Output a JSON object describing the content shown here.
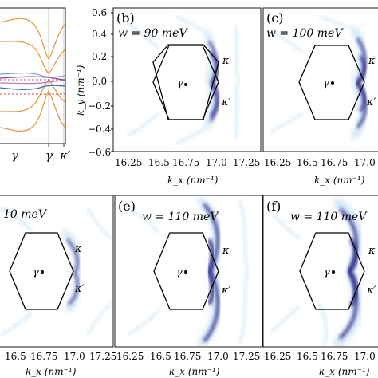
{
  "panels": {
    "a": {
      "x_ticks": [
        "γ",
        "γ",
        "κ′"
      ]
    },
    "b": {
      "tag": "(b)",
      "param": "w = 90 meV"
    },
    "c": {
      "tag": "(c)",
      "param": "w = 100 meV"
    },
    "d": {
      "param": "10 meV"
    },
    "e": {
      "tag": "(e)",
      "param": "w = 110 meV"
    },
    "f": {
      "tag": "(f)",
      "param": "w = 110 meV"
    }
  },
  "points": {
    "gamma": "γ",
    "kappa": "κ",
    "kappa_prime": "κ′"
  },
  "axes": {
    "ky_label": "k_y (nm⁻¹)",
    "kx_label": "k_x (nm⁻¹)",
    "ky_ticks": [
      "0.6",
      "0.4",
      "0.2",
      "0.0",
      "−0.2",
      "−0.4",
      "−0.6"
    ],
    "kx_ticks_b": [
      "16.25",
      "16.5",
      "16.75",
      "17.0",
      "17.25"
    ],
    "kx_ticks_c": [
      "16.25",
      "16.5",
      "16.75",
      "17.0"
    ],
    "kx_ticks_d": [
      "16.5",
      "16.75",
      "17.0",
      "17.25"
    ],
    "kx_ticks_e": [
      "16.25",
      "16.5",
      "16.75",
      "17.0",
      "17.25"
    ],
    "kx_ticks_f": [
      "16.25",
      "16.5",
      "16.75",
      "17.0"
    ]
  },
  "colors": {
    "intensity_dark": "#2c2787",
    "intensity_light": "#8fc3e6",
    "band_orange": "#e39a4c",
    "band_purple": "#a24d8e",
    "band_blue": "#3b6fb4",
    "band_red": "#d24a3a"
  }
}
